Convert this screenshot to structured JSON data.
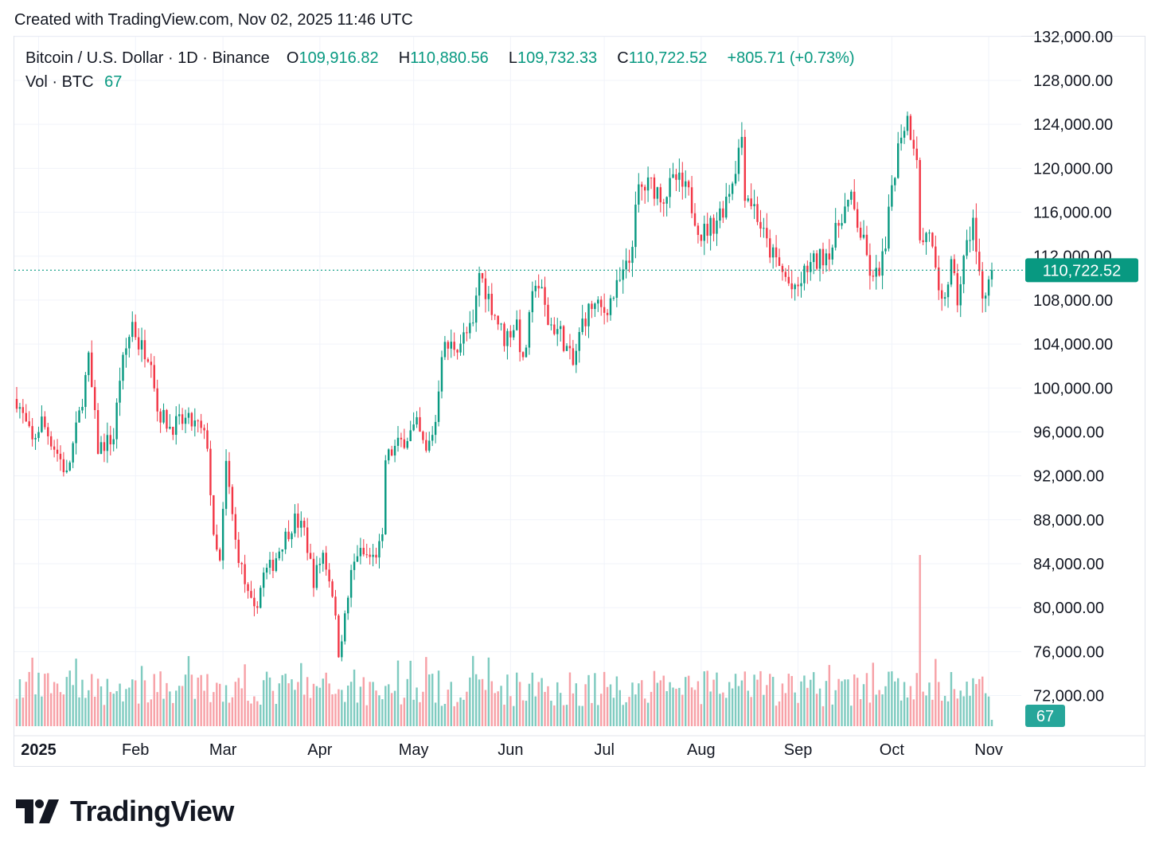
{
  "header": {
    "created": "Created with TradingView.com, Nov 02, 2025 11:46 UTC"
  },
  "legend": {
    "symbol": "Bitcoin / U.S. Dollar · 1D · Binance",
    "open_label": "O",
    "open": "109,916.82",
    "high_label": "H",
    "high": "110,880.56",
    "low_label": "L",
    "low": "109,732.33",
    "close_label": "C",
    "close": "110,722.52",
    "change": "+805.71 (+0.73%)",
    "vol_label": "Vol · BTC",
    "vol": "67"
  },
  "brand": {
    "name": "TradingView"
  },
  "colors": {
    "up": "#089981",
    "down": "#f23645",
    "up_vol": "#7fcbc0",
    "down_vol": "#f7a1a7",
    "grid": "#f0f3fa",
    "text": "#131722"
  },
  "chart_data": {
    "type": "candlestick",
    "symbol": "BTCUSD",
    "timeframe": "1D",
    "y_ticks": [
      "132,000.00",
      "128,000.00",
      "124,000.00",
      "120,000.00",
      "116,000.00",
      "112,000.00",
      "108,000.00",
      "104,000.00",
      "100,000.00",
      "96,000.00",
      "92,000.00",
      "88,000.00",
      "84,000.00",
      "80,000.00",
      "76,000.00",
      "72,000.00"
    ],
    "y_range": [
      69000,
      132000
    ],
    "x_ticks": [
      {
        "label": "2025",
        "date": "2025-01-01",
        "bold": true
      },
      {
        "label": "Feb",
        "date": "2025-02-01"
      },
      {
        "label": "Mar",
        "date": "2025-03-01"
      },
      {
        "label": "Apr",
        "date": "2025-04-01"
      },
      {
        "label": "May",
        "date": "2025-05-01"
      },
      {
        "label": "Jun",
        "date": "2025-06-01"
      },
      {
        "label": "Jul",
        "date": "2025-07-01"
      },
      {
        "label": "Aug",
        "date": "2025-08-01"
      },
      {
        "label": "Sep",
        "date": "2025-09-01"
      },
      {
        "label": "Oct",
        "date": "2025-10-01"
      },
      {
        "label": "Nov",
        "date": "2025-11-01"
      }
    ],
    "first_date": "2024-12-25",
    "last_date": "2025-11-02",
    "last_price": 110722.52,
    "last_price_label": "110,722.52",
    "last_volume_label": "67",
    "closes": [
      [
        99000,
        "2024-12-25"
      ],
      [
        95000,
        "2024-12-30"
      ],
      [
        97000,
        "2025-01-02"
      ],
      [
        93500,
        "2025-01-08"
      ],
      [
        92000,
        "2025-01-10"
      ],
      [
        97500,
        "2025-01-14"
      ],
      [
        102500,
        "2025-01-17"
      ],
      [
        94500,
        "2025-01-20"
      ],
      [
        95500,
        "2025-01-25"
      ],
      [
        101000,
        "2025-01-27"
      ],
      [
        106000,
        "2025-01-31"
      ],
      [
        104000,
        "2025-02-02"
      ],
      [
        103000,
        "2025-02-06"
      ],
      [
        98000,
        "2025-02-08"
      ],
      [
        96500,
        "2025-02-12"
      ],
      [
        97000,
        "2025-02-17"
      ],
      [
        96500,
        "2025-02-21"
      ],
      [
        95000,
        "2025-02-24"
      ],
      [
        86000,
        "2025-02-26"
      ],
      [
        84000,
        "2025-02-28"
      ],
      [
        93000,
        "2025-03-02"
      ],
      [
        86000,
        "2025-03-05"
      ],
      [
        81000,
        "2025-03-09"
      ],
      [
        79500,
        "2025-03-11"
      ],
      [
        83000,
        "2025-03-14"
      ],
      [
        84000,
        "2025-03-17"
      ],
      [
        86000,
        "2025-03-20"
      ],
      [
        88000,
        "2025-03-24"
      ],
      [
        87000,
        "2025-03-27"
      ],
      [
        82500,
        "2025-03-30"
      ],
      [
        85000,
        "2025-04-02"
      ],
      [
        81500,
        "2025-04-05"
      ],
      [
        76000,
        "2025-04-07"
      ],
      [
        79000,
        "2025-04-09"
      ],
      [
        83000,
        "2025-04-11"
      ],
      [
        85000,
        "2025-04-13"
      ],
      [
        84500,
        "2025-04-18"
      ],
      [
        86000,
        "2025-04-21"
      ],
      [
        93500,
        "2025-04-22"
      ],
      [
        94500,
        "2025-04-25"
      ],
      [
        96500,
        "2025-05-02"
      ],
      [
        94000,
        "2025-05-05"
      ],
      [
        97000,
        "2025-05-08"
      ],
      [
        103500,
        "2025-05-10"
      ],
      [
        104000,
        "2025-05-15"
      ],
      [
        105500,
        "2025-05-20"
      ],
      [
        110500,
        "2025-05-22"
      ],
      [
        107500,
        "2025-05-26"
      ],
      [
        104500,
        "2025-05-30"
      ],
      [
        106000,
        "2025-06-03"
      ],
      [
        102000,
        "2025-06-05"
      ],
      [
        110000,
        "2025-06-09"
      ],
      [
        108500,
        "2025-06-11"
      ],
      [
        106000,
        "2025-06-13"
      ],
      [
        105000,
        "2025-06-17"
      ],
      [
        102000,
        "2025-06-21"
      ],
      [
        106000,
        "2025-06-24"
      ],
      [
        107500,
        "2025-06-27"
      ],
      [
        107000,
        "2025-07-01"
      ],
      [
        109000,
        "2025-07-05"
      ],
      [
        111500,
        "2025-07-09"
      ],
      [
        118000,
        "2025-07-12"
      ],
      [
        118500,
        "2025-07-16"
      ],
      [
        117500,
        "2025-07-20"
      ],
      [
        119000,
        "2025-07-24"
      ],
      [
        117500,
        "2025-07-28"
      ],
      [
        114000,
        "2025-08-01"
      ],
      [
        115000,
        "2025-08-05"
      ],
      [
        116500,
        "2025-08-08"
      ],
      [
        119000,
        "2025-08-11"
      ],
      [
        123000,
        "2025-08-14"
      ],
      [
        118000,
        "2025-08-15"
      ],
      [
        116500,
        "2025-08-18"
      ],
      [
        113000,
        "2025-08-22"
      ],
      [
        111000,
        "2025-08-26"
      ],
      [
        108500,
        "2025-08-31"
      ],
      [
        111000,
        "2025-09-04"
      ],
      [
        111500,
        "2025-09-07"
      ],
      [
        113000,
        "2025-09-12"
      ],
      [
        116000,
        "2025-09-15"
      ],
      [
        117000,
        "2025-09-18"
      ],
      [
        113000,
        "2025-09-22"
      ],
      [
        109500,
        "2025-09-25"
      ],
      [
        112500,
        "2025-09-29"
      ],
      [
        118500,
        "2025-10-01"
      ],
      [
        123500,
        "2025-10-04"
      ],
      [
        124500,
        "2025-10-06"
      ],
      [
        121500,
        "2025-10-09"
      ],
      [
        113000,
        "2025-10-10"
      ],
      [
        114500,
        "2025-10-13"
      ],
      [
        108000,
        "2025-10-16"
      ],
      [
        107500,
        "2025-10-17"
      ],
      [
        111000,
        "2025-10-20"
      ],
      [
        108000,
        "2025-10-22"
      ],
      [
        111500,
        "2025-10-24"
      ],
      [
        115500,
        "2025-10-27"
      ],
      [
        112000,
        "2025-10-28"
      ],
      [
        108500,
        "2025-10-30"
      ],
      [
        109900,
        "2025-11-01"
      ],
      [
        110722,
        "2025-11-02"
      ]
    ],
    "volume_spike": {
      "date": "2025-10-10",
      "approx_btc": 1400
    }
  }
}
